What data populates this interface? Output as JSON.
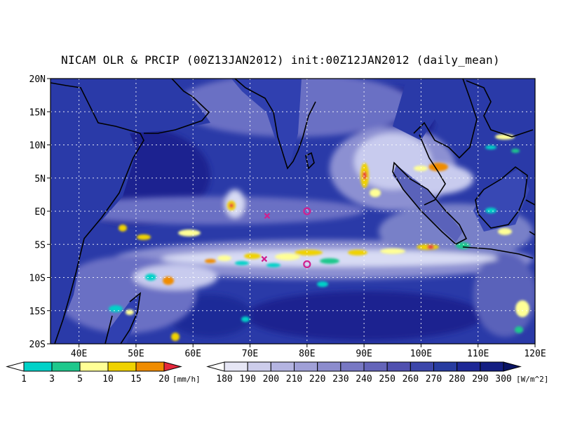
{
  "title": "NICAM OLR & PRCIP (00Z13JAN2012) init:00Z12JAN2012 (daily_mean)",
  "map": {
    "lon_range": [
      35,
      120
    ],
    "lat_range": [
      -20,
      20
    ],
    "lat_ticks": [
      "20N",
      "15N",
      "10N",
      "5N",
      "EQ",
      "5S",
      "10S",
      "15S",
      "20S"
    ],
    "lon_ticks": [
      "40E",
      "50E",
      "60E",
      "70E",
      "80E",
      "90E",
      "100E",
      "110E",
      "120E"
    ],
    "gridlines": "dotted",
    "ocean_color": "#2a3aa8",
    "coastline_color": "#000000"
  },
  "markers": [
    {
      "type": "cross",
      "lon": 73,
      "lat": -0.7,
      "color": "#d0208f"
    },
    {
      "type": "circle",
      "lon": 80,
      "lat": 0,
      "color": "#d0208f"
    },
    {
      "type": "cross",
      "lon": 72.5,
      "lat": -7.2,
      "color": "#d0208f"
    },
    {
      "type": "circle",
      "lon": 80,
      "lat": -8,
      "color": "#d0208f"
    }
  ],
  "legend_precip": {
    "unit": "[mm/h]",
    "levels": [
      "1",
      "3",
      "5",
      "10",
      "15",
      "20"
    ],
    "colors": [
      "#ffffff",
      "#00d2c8",
      "#1ec88c",
      "#ffff96",
      "#f0d200",
      "#f08c00",
      "#e6283c"
    ]
  },
  "legend_olr": {
    "unit": "[W/m^2]",
    "levels": [
      "180",
      "190",
      "200",
      "210",
      "220",
      "230",
      "240",
      "250",
      "260",
      "270",
      "280",
      "290",
      "300"
    ],
    "colors": [
      "#ffffff",
      "#e6e6f5",
      "#cdcdeb",
      "#b4b4e1",
      "#a0a0d7",
      "#8c8ccd",
      "#7878c3",
      "#6464b9",
      "#5050af",
      "#3c46aa",
      "#283ca0",
      "#1e2896",
      "#141e82",
      "#0a1464"
    ]
  }
}
